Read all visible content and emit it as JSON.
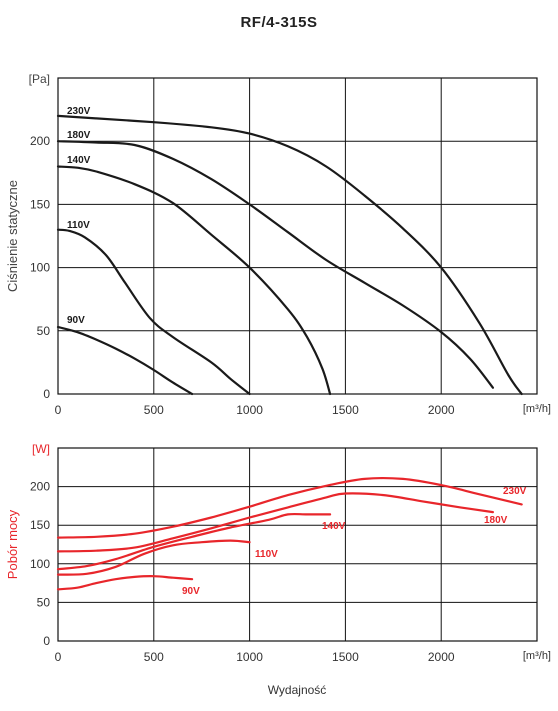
{
  "title": "RF/4-315S",
  "xlabel": "Wydajność",
  "chart_data": [
    {
      "type": "line",
      "ylabel": "Ciśnienie statyczne",
      "yunit": "[Pa]",
      "xunit": "[m³/h]",
      "xlim": [
        0,
        2500
      ],
      "ylim": [
        0,
        250
      ],
      "xticks": [
        0,
        500,
        1000,
        1500,
        2000
      ],
      "yticks": [
        0,
        50,
        100,
        150,
        200
      ],
      "grid": true,
      "line_color": "#1a1a1a",
      "series": [
        {
          "name": "230V",
          "x": [
            0,
            200,
            500,
            800,
            1000,
            1200,
            1400,
            1600,
            1800,
            2000,
            2200,
            2350,
            2420
          ],
          "y": [
            220,
            218,
            215,
            211,
            206,
            196,
            180,
            157,
            131,
            100,
            56,
            15,
            0
          ]
        },
        {
          "name": "180V",
          "x": [
            0,
            200,
            400,
            600,
            800,
            1000,
            1200,
            1400,
            1600,
            1800,
            2000,
            2150,
            2270
          ],
          "y": [
            200,
            199,
            197,
            186,
            170,
            150,
            128,
            106,
            88,
            70,
            49,
            28,
            5
          ]
        },
        {
          "name": "140V",
          "x": [
            0,
            100,
            200,
            400,
            600,
            800,
            1000,
            1200,
            1300,
            1380,
            1420
          ],
          "y": [
            180,
            179,
            176,
            166,
            151,
            126,
            100,
            67,
            45,
            20,
            0
          ]
        },
        {
          "name": "110V",
          "x": [
            0,
            60,
            140,
            250,
            350,
            480,
            600,
            800,
            900,
            1000
          ],
          "y": [
            130,
            129,
            124,
            110,
            88,
            60,
            45,
            25,
            12,
            0
          ]
        },
        {
          "name": "90V",
          "x": [
            0,
            100,
            200,
            300,
            400,
            500,
            600,
            700
          ],
          "y": [
            53,
            49,
            43,
            36,
            28,
            19,
            9,
            0
          ]
        }
      ]
    },
    {
      "type": "line",
      "ylabel": "Pobór mocy",
      "yunit": "[W]",
      "xunit": "[m³/h]",
      "xlim": [
        0,
        2500
      ],
      "ylim": [
        0,
        250
      ],
      "xticks": [
        0,
        500,
        1000,
        1500,
        2000
      ],
      "yticks": [
        0,
        50,
        100,
        150,
        200
      ],
      "grid": true,
      "line_color": "#e8262b",
      "series": [
        {
          "name": "230V",
          "x": [
            0,
            200,
            400,
            600,
            800,
            1000,
            1200,
            1400,
            1600,
            1800,
            2000,
            2200,
            2420
          ],
          "y": [
            134,
            135,
            139,
            148,
            160,
            174,
            189,
            201,
            210,
            210,
            202,
            190,
            177
          ]
        },
        {
          "name": "180V",
          "x": [
            0,
            200,
            400,
            600,
            800,
            1000,
            1200,
            1400,
            1500,
            1700,
            1900,
            2100,
            2270
          ],
          "y": [
            116,
            117,
            121,
            133,
            146,
            160,
            173,
            186,
            191,
            189,
            181,
            173,
            167
          ]
        },
        {
          "name": "140V",
          "x": [
            0,
            150,
            300,
            500,
            700,
            900,
            1100,
            1200,
            1300,
            1420
          ],
          "y": [
            93,
            97,
            106,
            122,
            135,
            147,
            157,
            164,
            164,
            164
          ]
        },
        {
          "name": "110V",
          "x": [
            0,
            150,
            300,
            450,
            600,
            750,
            900,
            1000
          ],
          "y": [
            86,
            87,
            96,
            113,
            124,
            128,
            130,
            128
          ]
        },
        {
          "name": "90V",
          "x": [
            0,
            100,
            200,
            300,
            400,
            500,
            600,
            700
          ],
          "y": [
            67,
            69,
            75,
            80,
            83,
            84,
            82,
            80
          ]
        }
      ]
    }
  ]
}
